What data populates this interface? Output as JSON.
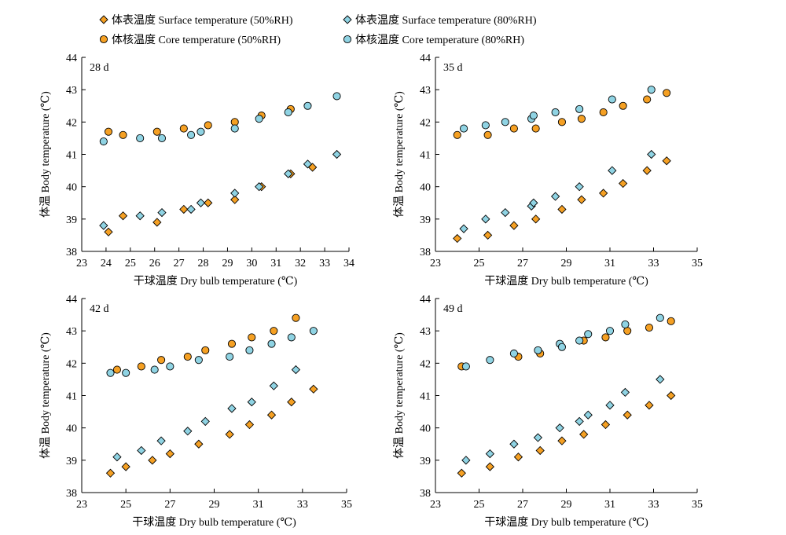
{
  "legend": {
    "placement": "top",
    "entries": [
      {
        "key": "s50",
        "label": "体表温度 Surface temperature (50%RH)",
        "marker": "diamond",
        "color": "#F5A023"
      },
      {
        "key": "s80",
        "label": "体表温度 Surface temperature (80%RH)",
        "marker": "diamond",
        "color": "#8FD3E3"
      },
      {
        "key": "c50",
        "label": "体核温度 Core temperature (50%RH)",
        "marker": "circle",
        "color": "#F5A023"
      },
      {
        "key": "c80",
        "label": "体核温度 Core temperature (80%RH)",
        "marker": "circle",
        "color": "#8FD3E3"
      }
    ]
  },
  "chart_data": [
    {
      "type": "scatter",
      "title": "28 d",
      "xlabel": "干球温度 Dry bulb temperature (℃)",
      "ylabel": "体温 Body temperature (℃)",
      "xlim": [
        23,
        34
      ],
      "ylim": [
        38,
        44
      ],
      "xticks": [
        23,
        24,
        25,
        26,
        27,
        28,
        29,
        30,
        31,
        32,
        33,
        34
      ],
      "yticks": [
        38,
        39,
        40,
        41,
        42,
        43,
        44
      ],
      "grid": false,
      "series": [
        {
          "name": "体表温度 Surface temperature (50%RH)",
          "marker": "diamond",
          "color": "#F5A023",
          "x": [
            24.1,
            24.7,
            26.1,
            27.2,
            28.2,
            29.3,
            30.4,
            31.6,
            32.5
          ],
          "y": [
            38.6,
            39.1,
            38.9,
            39.3,
            39.5,
            39.6,
            40.0,
            40.4,
            40.6
          ]
        },
        {
          "name": "体表温度 Surface temperature (80%RH)",
          "marker": "diamond",
          "color": "#8FD3E3",
          "x": [
            23.9,
            25.4,
            26.3,
            27.5,
            27.9,
            29.3,
            30.3,
            31.5,
            32.3,
            33.5
          ],
          "y": [
            38.8,
            39.1,
            39.2,
            39.3,
            39.5,
            39.8,
            40.0,
            40.4,
            40.7,
            41.0
          ]
        },
        {
          "name": "体核温度 Core temperature (50%RH)",
          "marker": "circle",
          "color": "#F5A023",
          "x": [
            24.1,
            24.7,
            26.1,
            27.2,
            28.2,
            29.3,
            30.4,
            31.6
          ],
          "y": [
            41.7,
            41.6,
            41.7,
            41.8,
            41.9,
            42.0,
            42.2,
            42.4
          ]
        },
        {
          "name": "体核温度 Core temperature (80%RH)",
          "marker": "circle",
          "color": "#8FD3E3",
          "x": [
            23.9,
            25.4,
            26.3,
            27.5,
            27.9,
            29.3,
            30.3,
            31.5,
            32.3,
            33.5
          ],
          "y": [
            41.4,
            41.5,
            41.5,
            41.6,
            41.7,
            41.8,
            42.1,
            42.3,
            42.5,
            42.8
          ]
        }
      ]
    },
    {
      "type": "scatter",
      "title": "35 d",
      "xlabel": "干球温度 Dry bulb temperature (℃)",
      "ylabel": "体温 Body temperature (℃)",
      "xlim": [
        23,
        35
      ],
      "ylim": [
        38,
        44
      ],
      "xticks": [
        23,
        25,
        27,
        29,
        31,
        33,
        35
      ],
      "yticks": [
        38,
        39,
        40,
        41,
        42,
        43,
        44
      ],
      "grid": false,
      "series": [
        {
          "name": "体表温度 Surface temperature (50%RH)",
          "marker": "diamond",
          "color": "#F5A023",
          "x": [
            24.0,
            25.4,
            26.6,
            27.6,
            28.8,
            29.7,
            30.7,
            31.6,
            32.7,
            33.6
          ],
          "y": [
            38.4,
            38.5,
            38.8,
            39.0,
            39.3,
            39.6,
            39.8,
            40.1,
            40.5,
            40.8
          ]
        },
        {
          "name": "体表温度 Surface temperature (80%RH)",
          "marker": "diamond",
          "color": "#8FD3E3",
          "x": [
            24.3,
            25.3,
            26.2,
            27.4,
            27.5,
            28.5,
            29.6,
            31.1,
            32.9
          ],
          "y": [
            38.7,
            39.0,
            39.2,
            39.4,
            39.5,
            39.7,
            40.0,
            40.5,
            41.0
          ]
        },
        {
          "name": "体核温度 Core temperature (50%RH)",
          "marker": "circle",
          "color": "#F5A023",
          "x": [
            24.0,
            25.4,
            26.6,
            27.6,
            28.8,
            29.7,
            30.7,
            31.6,
            32.7,
            33.6
          ],
          "y": [
            41.6,
            41.6,
            41.8,
            41.8,
            42.0,
            42.1,
            42.3,
            42.5,
            42.7,
            42.9
          ]
        },
        {
          "name": "体核温度 Core temperature (80%RH)",
          "marker": "circle",
          "color": "#8FD3E3",
          "x": [
            24.3,
            25.3,
            26.2,
            27.4,
            27.5,
            28.5,
            29.6,
            31.1,
            32.9
          ],
          "y": [
            41.8,
            41.9,
            42.0,
            42.1,
            42.2,
            42.3,
            42.4,
            42.7,
            43.0
          ]
        }
      ]
    },
    {
      "type": "scatter",
      "title": "42 d",
      "xlabel": "干球温度 Dry bulb temperature (℃)",
      "ylabel": "体温 Body temperature (℃)",
      "xlim": [
        23,
        35
      ],
      "ylim": [
        38,
        44
      ],
      "xticks": [
        23,
        25,
        27,
        29,
        31,
        33,
        35
      ],
      "yticks": [
        38,
        39,
        40,
        41,
        42,
        43,
        44
      ],
      "grid": false,
      "series": [
        {
          "name": "体表温度 Surface temperature (50%RH)",
          "marker": "diamond",
          "color": "#F5A023",
          "x": [
            24.3,
            25.0,
            26.2,
            27.0,
            28.3,
            29.7,
            30.6,
            31.6,
            32.5,
            33.5
          ],
          "y": [
            38.6,
            38.8,
            39.0,
            39.2,
            39.5,
            39.8,
            40.1,
            40.4,
            40.8,
            41.2
          ]
        },
        {
          "name": "体表温度 Surface temperature (80%RH)",
          "marker": "diamond",
          "color": "#8FD3E3",
          "x": [
            24.6,
            25.7,
            26.6,
            27.8,
            28.6,
            29.8,
            30.7,
            31.7,
            32.7
          ],
          "y": [
            39.1,
            39.3,
            39.6,
            39.9,
            40.2,
            40.6,
            40.8,
            41.3,
            41.8
          ]
        },
        {
          "name": "体核温度 Core temperature (50%RH)",
          "marker": "circle",
          "color": "#F5A023",
          "x": [
            24.6,
            25.7,
            26.6,
            27.8,
            28.6,
            29.8,
            30.7,
            31.7,
            32.7
          ],
          "y": [
            41.8,
            41.9,
            42.1,
            42.2,
            42.4,
            42.6,
            42.8,
            43.0,
            43.4
          ]
        },
        {
          "name": "体核温度 Core temperature (80%RH)",
          "marker": "circle",
          "color": "#8FD3E3",
          "x": [
            24.3,
            25.0,
            26.3,
            27.0,
            28.3,
            29.7,
            30.6,
            31.6,
            32.5,
            33.5
          ],
          "y": [
            41.7,
            41.7,
            41.8,
            41.9,
            42.1,
            42.2,
            42.4,
            42.6,
            42.8,
            43.0
          ]
        }
      ]
    },
    {
      "type": "scatter",
      "title": "49 d",
      "xlabel": "干球温度 Dry bulb temperature (℃)",
      "ylabel": "体温 Body temperature (℃)",
      "xlim": [
        23,
        35
      ],
      "ylim": [
        38,
        44
      ],
      "xticks": [
        23,
        25,
        27,
        29,
        31,
        33,
        35
      ],
      "yticks": [
        38,
        39,
        40,
        41,
        42,
        43,
        44
      ],
      "grid": false,
      "series": [
        {
          "name": "体表温度 Surface temperature (50%RH)",
          "marker": "diamond",
          "color": "#F5A023",
          "x": [
            24.2,
            25.5,
            26.8,
            27.8,
            28.8,
            29.8,
            30.8,
            31.8,
            32.8,
            33.8
          ],
          "y": [
            38.6,
            38.8,
            39.1,
            39.3,
            39.6,
            39.8,
            40.1,
            40.4,
            40.7,
            41.0
          ]
        },
        {
          "name": "体表温度 Surface temperature (80%RH)",
          "marker": "diamond",
          "color": "#8FD3E3",
          "x": [
            24.4,
            25.5,
            26.6,
            27.7,
            28.7,
            29.6,
            30.0,
            31.0,
            31.7,
            33.3
          ],
          "y": [
            39.0,
            39.2,
            39.5,
            39.7,
            40.0,
            40.2,
            40.4,
            40.7,
            41.1,
            41.5
          ]
        },
        {
          "name": "体核温度 Core temperature (50%RH)",
          "marker": "circle",
          "color": "#F5A023",
          "x": [
            24.2,
            26.8,
            27.8,
            29.8,
            30.8,
            31.8,
            32.8,
            33.8
          ],
          "y": [
            41.9,
            42.2,
            42.3,
            42.7,
            42.8,
            43.0,
            43.1,
            43.3
          ]
        },
        {
          "name": "体核温度 Core temperature (80%RH)",
          "marker": "circle",
          "color": "#8FD3E3",
          "x": [
            24.4,
            25.5,
            26.6,
            27.7,
            28.7,
            28.8,
            29.6,
            30.0,
            31.0,
            31.7,
            33.3
          ],
          "y": [
            41.9,
            42.1,
            42.3,
            42.4,
            42.6,
            42.5,
            42.7,
            42.9,
            43.0,
            43.2,
            43.4
          ]
        }
      ]
    }
  ]
}
